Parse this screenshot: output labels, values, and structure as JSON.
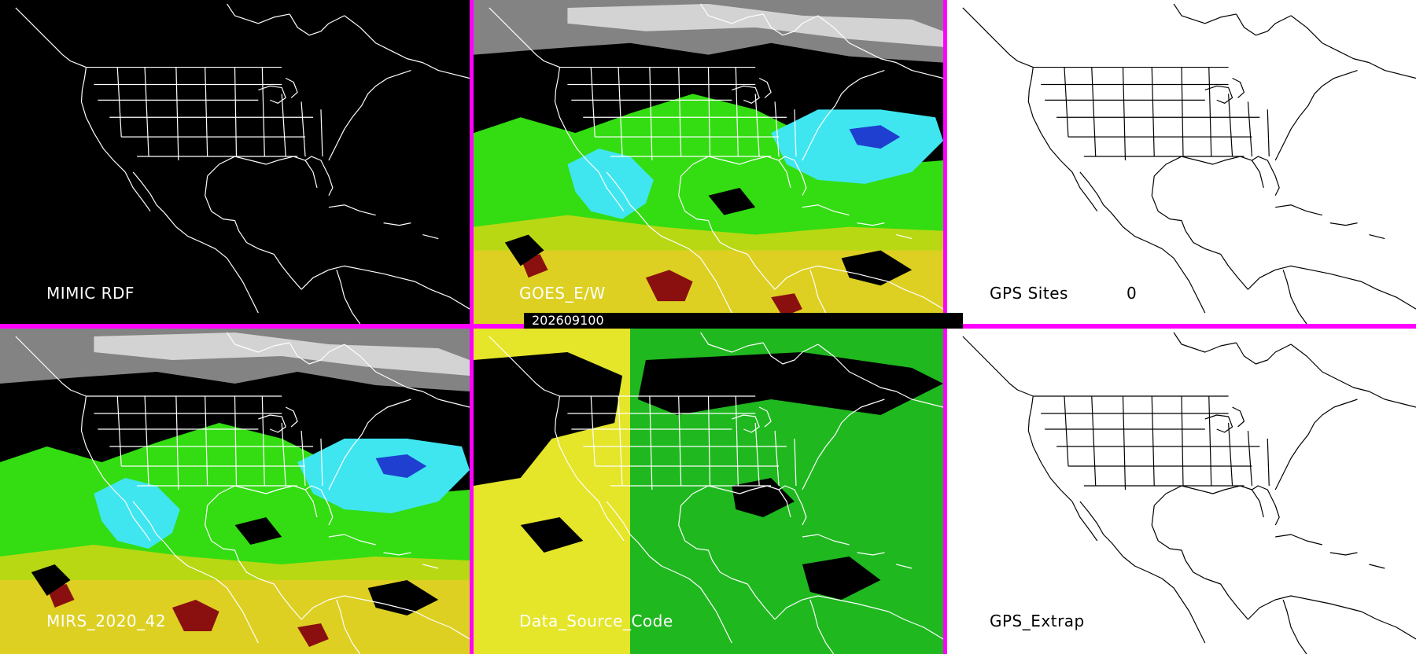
{
  "panels": [
    {
      "label": "MIMIC RDF",
      "value": ""
    },
    {
      "label": "GOES_E/W",
      "value": ""
    },
    {
      "label": "GPS Sites",
      "value": "0"
    },
    {
      "label": "MIRS_2020_42",
      "value": ""
    },
    {
      "label": "Data_Source_Code",
      "value": ""
    },
    {
      "label": "GPS_Extrap",
      "value": ""
    }
  ],
  "timestamp": "202609100",
  "colors": {
    "divider": "#ff00ff",
    "map_dark_bg": "#000000",
    "map_light_bg": "#ffffff",
    "coast_on_dark": "#ffffff",
    "coast_on_light": "#000000",
    "tpw_dry_gray": "#b8b8b8",
    "tpw_cyan": "#3fe6f0",
    "tpw_blue": "#1f3fd0",
    "tpw_green": "#33dd11",
    "tpw_yellow": "#ddd022",
    "tpw_red": "#8a1010",
    "source_yellow": "#e5e52a",
    "source_green": "#1fb81f"
  }
}
